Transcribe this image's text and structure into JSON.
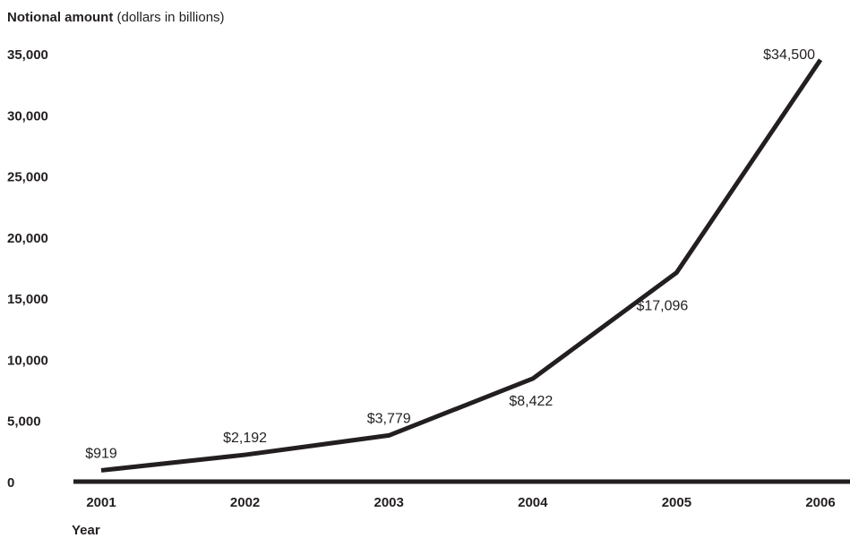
{
  "chart_data": {
    "type": "line",
    "ylabel_bold": "Notional amount",
    "ylabel_rest": " (dollars in billions)",
    "xlabel": "Year",
    "x": [
      "2001",
      "2002",
      "2003",
      "2004",
      "2005",
      "2006"
    ],
    "series": [
      {
        "values": [
          919,
          2192,
          3779,
          8422,
          17096,
          34500
        ]
      }
    ],
    "data_labels": [
      "$919",
      "$2,192",
      "$3,779",
      "$8,422",
      "$17,096",
      "$34,500"
    ],
    "yticks": [
      0,
      5000,
      10000,
      15000,
      20000,
      25000,
      30000,
      35000
    ],
    "ytick_labels": [
      "0",
      "5,000",
      "10,000",
      "15,000",
      "20,000",
      "25,000",
      "30,000",
      "35,000"
    ],
    "ylim": [
      0,
      35000
    ],
    "grid": false,
    "legend": "none",
    "line_color": "#231f20"
  }
}
